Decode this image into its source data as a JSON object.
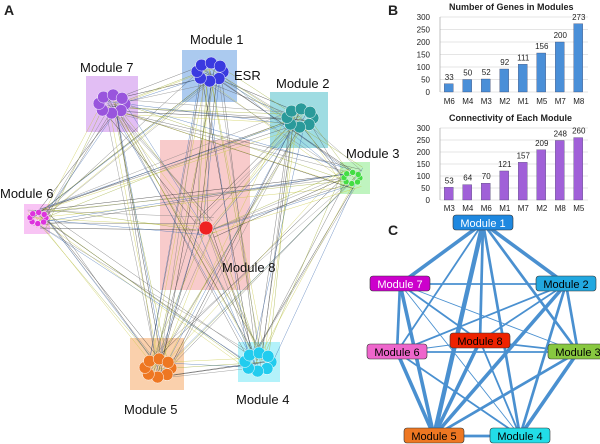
{
  "panels": {
    "a": "A",
    "b": "B",
    "c": "C"
  },
  "network_a": {
    "modules": [
      {
        "id": "M1",
        "label": "Module 1",
        "color": "#3a3ae0",
        "box": "#8fb8ea"
      },
      {
        "id": "M2",
        "label": "Module 2",
        "color": "#2a9a9a",
        "box": "#7fd0d8"
      },
      {
        "id": "M3",
        "label": "Module 3",
        "color": "#44dd44",
        "box": "#aaf0aa"
      },
      {
        "id": "M4",
        "label": "Module 4",
        "color": "#22ccee",
        "box": "#99eef8"
      },
      {
        "id": "M5",
        "label": "Module 5",
        "color": "#ee7722",
        "box": "#f8c090"
      },
      {
        "id": "M6",
        "label": "Module 6",
        "color": "#dd33dd",
        "box": "#f6b0f0"
      },
      {
        "id": "M7",
        "label": "Module 7",
        "color": "#9955dd",
        "box": "#d8a8f0"
      },
      {
        "id": "M8",
        "label": "Module 8",
        "color": "#ee2222",
        "box": "#f4a8a8"
      }
    ],
    "annotation": "ESR"
  },
  "chart_data": [
    {
      "type": "bar",
      "title": "Number of Genes in Modules",
      "categories": [
        "M6",
        "M4",
        "M3",
        "M2",
        "M1",
        "M5",
        "M7",
        "M8"
      ],
      "values": [
        33,
        50,
        52,
        92,
        111,
        156,
        200,
        273
      ],
      "ylim": [
        0,
        300
      ],
      "yticks": [
        "0",
        "50",
        "100",
        "150",
        "200",
        "250",
        "300"
      ],
      "color": "#4a8fd8"
    },
    {
      "type": "bar",
      "title": "Connectivity of Each Module",
      "categories": [
        "M3",
        "M4",
        "M6",
        "M1",
        "M7",
        "M2",
        "M8",
        "M5"
      ],
      "values": [
        53,
        64,
        70,
        121,
        157,
        209,
        248,
        260
      ],
      "ylim": [
        0,
        300
      ],
      "yticks": [
        "0",
        "50",
        "100",
        "150",
        "200",
        "250",
        "300"
      ],
      "color": "#a060d8"
    }
  ],
  "network_c": {
    "nodes": [
      {
        "id": "M1",
        "label": "Module 1",
        "color": "#1e88e0",
        "text": "#fff"
      },
      {
        "id": "M2",
        "label": "Module 2",
        "color": "#22a8e0",
        "text": "#000"
      },
      {
        "id": "M3",
        "label": "Module 3",
        "color": "#88c840",
        "text": "#000"
      },
      {
        "id": "M4",
        "label": "Module 4",
        "color": "#22dde8",
        "text": "#000"
      },
      {
        "id": "M5",
        "label": "Module 5",
        "color": "#ee7722",
        "text": "#000"
      },
      {
        "id": "M6",
        "label": "Module 6",
        "color": "#ee66cc",
        "text": "#000"
      },
      {
        "id": "M7",
        "label": "Module 7",
        "color": "#cc00cc",
        "text": "#fff"
      },
      {
        "id": "M8",
        "label": "Module 8",
        "color": "#ee2200",
        "text": "#000"
      }
    ],
    "edges": [
      [
        "M1",
        "M2",
        4
      ],
      [
        "M1",
        "M7",
        4
      ],
      [
        "M1",
        "M5",
        5
      ],
      [
        "M1",
        "M4",
        3
      ],
      [
        "M1",
        "M8",
        3
      ],
      [
        "M1",
        "M3",
        3
      ],
      [
        "M1",
        "M6",
        2
      ],
      [
        "M7",
        "M2",
        2
      ],
      [
        "M7",
        "M6",
        3
      ],
      [
        "M7",
        "M5",
        4
      ],
      [
        "M7",
        "M4",
        1
      ],
      [
        "M7",
        "M3",
        1
      ],
      [
        "M2",
        "M3",
        3
      ],
      [
        "M2",
        "M5",
        4
      ],
      [
        "M2",
        "M4",
        3
      ],
      [
        "M2",
        "M6",
        2
      ],
      [
        "M2",
        "M8",
        2
      ],
      [
        "M6",
        "M5",
        4
      ],
      [
        "M6",
        "M3",
        2
      ],
      [
        "M6",
        "M4",
        2
      ],
      [
        "M6",
        "M8",
        1
      ],
      [
        "M3",
        "M5",
        3
      ],
      [
        "M3",
        "M4",
        4
      ],
      [
        "M8",
        "M5",
        4
      ],
      [
        "M8",
        "M4",
        2
      ],
      [
        "M8",
        "M3",
        2
      ],
      [
        "M5",
        "M4",
        3
      ],
      [
        "M7",
        "M8",
        2
      ]
    ]
  }
}
